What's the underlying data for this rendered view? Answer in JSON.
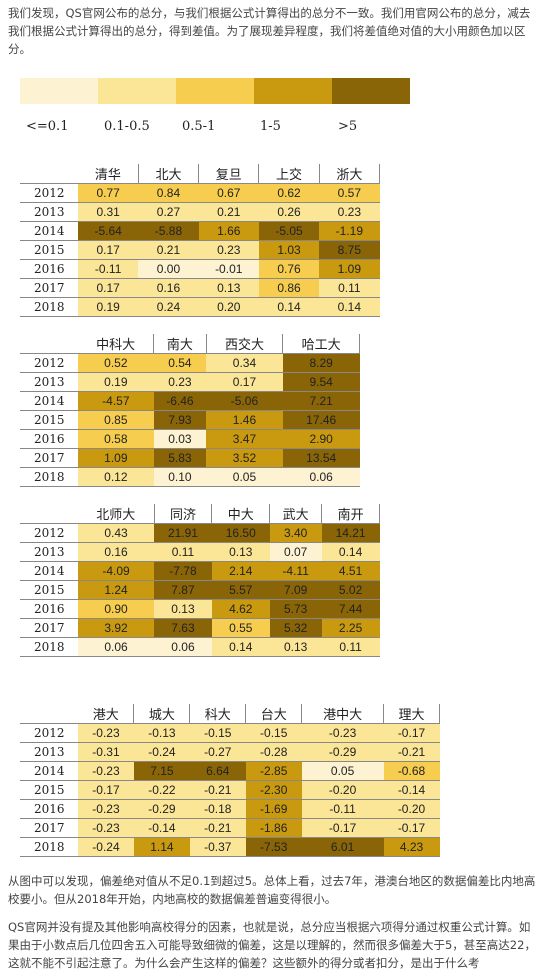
{
  "paragraphs": {
    "p1": "我们发现，QS官网公布的总分，与我们根据公式计算得出的总分不一致。我们用官网公布的总分，减去我们根据公式计算得出的总分，得到差值。为了展现差异程度，我们将差值绝对值的大小用颜色加以区分。",
    "p2": "从图中可以发现，偏差绝对值从不足0.1到超过5。总体上看，过去7年，港澳台地区的数据偏差比内地高校要小。但从2018年开始，内地高校的数据偏差普遍变得很小。",
    "p3": "QS官网并没有提及其他影响高校得分的因素，也就是说，总分应当根据六项得分通过权重公式计算。如果由于小数点后几位四舍五入可能导致细微的偏差，这是以理解的，然而很多偏差大于5，甚至高达22，这就不能不引起注意了。为什么会产生这样的偏差？这些额外的得分或者扣分，是出于什么考"
  },
  "legend": {
    "colors": [
      "#fdf3d2",
      "#fbe596",
      "#f6cd4e",
      "#c99a0f",
      "#8a6507"
    ],
    "labels": [
      "<=0.1",
      "0.1-0.5",
      "0.5-1",
      "1-5",
      ">5"
    ]
  },
  "tables": [
    {
      "id": "t1",
      "schools": [
        "清华",
        "北大",
        "复旦",
        "上交",
        "浙大"
      ],
      "rows": [
        {
          "year": "2012",
          "values": [
            "0.77",
            "0.84",
            "0.67",
            "0.62",
            "0.57"
          ]
        },
        {
          "year": "2013",
          "values": [
            "0.31",
            "0.27",
            "0.21",
            "0.26",
            "0.23"
          ]
        },
        {
          "year": "2014",
          "values": [
            "-5.64",
            "-5.88",
            "1.66",
            "-5.05",
            "-1.19"
          ]
        },
        {
          "year": "2015",
          "values": [
            "0.17",
            "0.21",
            "0.23",
            "1.03",
            "8.75"
          ]
        },
        {
          "year": "2016",
          "values": [
            "-0.11",
            "0.00",
            "-0.01",
            "0.76",
            "1.09"
          ]
        },
        {
          "year": "2017",
          "values": [
            "0.17",
            "0.16",
            "0.13",
            "0.86",
            "0.11"
          ]
        },
        {
          "year": "2018",
          "values": [
            "0.19",
            "0.24",
            "0.20",
            "0.14",
            "0.14"
          ]
        }
      ]
    },
    {
      "id": "t2",
      "schools": [
        "中科大",
        "南大",
        "西交大",
        "哈工大"
      ],
      "rows": [
        {
          "year": "2012",
          "values": [
            "0.52",
            "0.54",
            "0.34",
            "8.29"
          ]
        },
        {
          "year": "2013",
          "values": [
            "0.19",
            "0.23",
            "0.17",
            "9.54"
          ]
        },
        {
          "year": "2014",
          "values": [
            "-4.57",
            "-6.46",
            "-5.06",
            "7.21"
          ]
        },
        {
          "year": "2015",
          "values": [
            "0.85",
            "7.93",
            "1.46",
            "17.46"
          ]
        },
        {
          "year": "2016",
          "values": [
            "0.58",
            "0.03",
            "3.47",
            "2.90"
          ]
        },
        {
          "year": "2017",
          "values": [
            "1.09",
            "5.83",
            "3.52",
            "13.54"
          ]
        },
        {
          "year": "2018",
          "values": [
            "0.12",
            "0.10",
            "0.05",
            "0.06"
          ]
        }
      ]
    },
    {
      "id": "t3",
      "schools": [
        "北师大",
        "同济",
        "中大",
        "武大",
        "南开"
      ],
      "rows": [
        {
          "year": "2012",
          "values": [
            "0.43",
            "21.91",
            "16.50",
            "3.40",
            "14.21"
          ]
        },
        {
          "year": "2013",
          "values": [
            "0.16",
            "0.11",
            "0.13",
            "0.07",
            "0.14"
          ]
        },
        {
          "year": "2014",
          "values": [
            "-4.09",
            "-7.78",
            "2.14",
            "-4.11",
            "4.51"
          ]
        },
        {
          "year": "2015",
          "values": [
            "1.24",
            "7.87",
            "5.57",
            "7.09",
            "5.02"
          ]
        },
        {
          "year": "2016",
          "values": [
            "0.90",
            "0.13",
            "4.62",
            "5.73",
            "7.44"
          ]
        },
        {
          "year": "2017",
          "values": [
            "3.92",
            "7.63",
            "0.55",
            "5.32",
            "2.25"
          ]
        },
        {
          "year": "2018",
          "values": [
            "0.06",
            "0.06",
            "0.14",
            "0.13",
            "0.11"
          ]
        }
      ]
    },
    {
      "id": "t4",
      "schools": [
        "港大",
        "城大",
        "科大",
        "台大",
        "港中大",
        "理大"
      ],
      "rows": [
        {
          "year": "2012",
          "values": [
            "-0.23",
            "-0.13",
            "-0.15",
            "-0.15",
            "-0.23",
            "-0.17"
          ]
        },
        {
          "year": "2013",
          "values": [
            "-0.31",
            "-0.24",
            "-0.27",
            "-0.28",
            "-0.29",
            "-0.21"
          ]
        },
        {
          "year": "2014",
          "values": [
            "-0.23",
            "7.15",
            "6.64",
            "-2.85",
            "0.05",
            "-0.68"
          ]
        },
        {
          "year": "2015",
          "values": [
            "-0.17",
            "-0.22",
            "-0.21",
            "-2.30",
            "-0.20",
            "-0.14"
          ]
        },
        {
          "year": "2016",
          "values": [
            "-0.23",
            "-0.29",
            "-0.18",
            "-1.69",
            "-0.11",
            "-0.20"
          ]
        },
        {
          "year": "2017",
          "values": [
            "-0.23",
            "-0.14",
            "-0.21",
            "-1.86",
            "-0.17",
            "-0.17"
          ]
        },
        {
          "year": "2018",
          "values": [
            "-0.24",
            "1.14",
            "-0.37",
            "-7.53",
            "6.01",
            "4.23"
          ]
        }
      ]
    }
  ]
}
